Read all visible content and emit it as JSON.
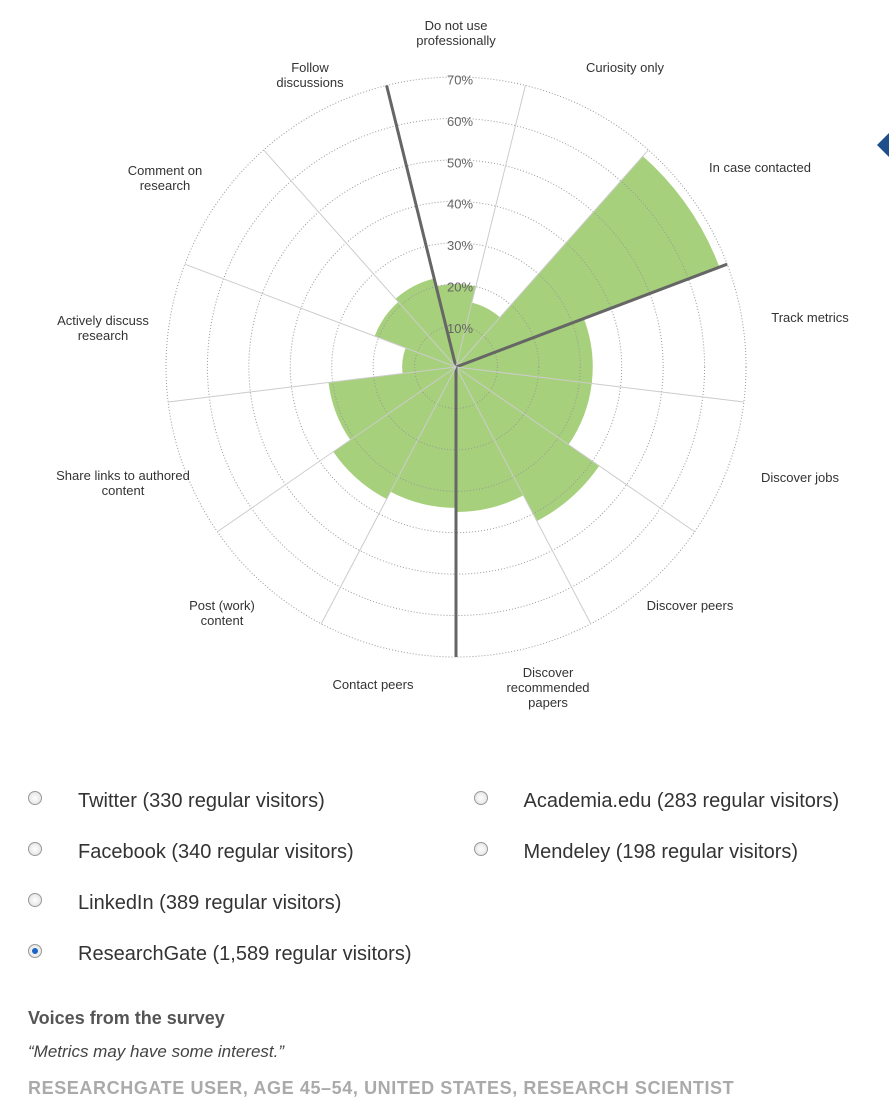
{
  "chart_data": {
    "type": "polar",
    "categories": [
      "Do not use professionally",
      "Curiosity only",
      "In case contacted",
      "Track metrics",
      "Discover jobs",
      "Discover peers",
      "Discover recommended papers",
      "Contact peers",
      "Post (work) content",
      "Share links to authored content",
      "Actively discuss research",
      "Comment on research",
      "Follow discussions"
    ],
    "values": [
      20,
      16,
      68,
      33,
      33,
      42,
      35,
      34,
      36,
      31,
      13,
      21,
      22
    ],
    "color": "#a6d07b",
    "ylim": [
      0,
      70
    ],
    "yticks": [
      {
        "value": 10,
        "label": "10%"
      },
      {
        "value": 20,
        "label": "20%"
      },
      {
        "value": 30,
        "label": "30%"
      },
      {
        "value": 40,
        "label": "40%"
      },
      {
        "value": 50,
        "label": "50%"
      },
      {
        "value": 60,
        "label": "60%"
      },
      {
        "value": 70,
        "label": "70%"
      }
    ]
  },
  "options": [
    {
      "label": "Twitter (330 regular visitors)",
      "checked": false
    },
    {
      "label": "Facebook (340 regular visitors)",
      "checked": false
    },
    {
      "label": "LinkedIn (389 regular visitors)",
      "checked": false
    },
    {
      "label": "ResearchGate (1,589 regular visitors)",
      "checked": true
    },
    {
      "label": "Academia.edu (283 regular visitors)",
      "checked": false
    },
    {
      "label": "Mendeley (198 regular visitors)",
      "checked": false
    }
  ],
  "quote": {
    "heading": "Voices from the survey",
    "text": "“Metrics may have some interest.”",
    "source": "RESEARCHGATE USER, AGE 45–54, UNITED STATES, RESEARCH SCIENTIST"
  }
}
